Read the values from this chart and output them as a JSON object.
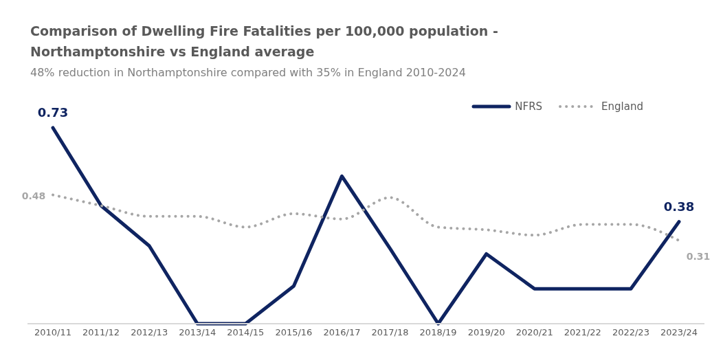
{
  "chart_data": {
    "type": "line",
    "title": "Comparison of Dwelling Fire Fatalities per 100,000 population - Northamptonshire vs England average",
    "subtitle": "48% reduction in Northamptonshire compared with 35% in England 2010-2024",
    "categories": [
      "2010/11",
      "2011/12",
      "2012/13",
      "2013/14",
      "2014/15",
      "2015/16",
      "2016/17",
      "2017/18",
      "2018/19",
      "2019/20",
      "2020/21",
      "2021/22",
      "2022/23",
      "2023/24"
    ],
    "series": [
      {
        "name": "NFRS",
        "color": "#0f2461",
        "line_style": "solid",
        "values": [
          0.73,
          0.44,
          0.29,
          0,
          0,
          0.14,
          0.55,
          0.28,
          0,
          0.26,
          0.13,
          0.13,
          0.13,
          0.38
        ],
        "value_labels": [
          "0.73",
          null,
          null,
          null,
          null,
          null,
          null,
          null,
          null,
          null,
          null,
          null,
          null,
          "0.38"
        ]
      },
      {
        "name": "England",
        "color": "#a6a6a6",
        "line_style": "dotted",
        "values": [
          0.48,
          0.44,
          0.4,
          0.4,
          0.36,
          0.41,
          0.39,
          0.47,
          0.36,
          0.35,
          0.33,
          0.37,
          0.37,
          0.31
        ],
        "value_labels": [
          "0.48",
          null,
          null,
          null,
          null,
          null,
          null,
          null,
          null,
          null,
          null,
          null,
          null,
          "0.31"
        ]
      }
    ],
    "legend": "top right",
    "tick_labels": "x",
    "grid": false,
    "marker": "none"
  }
}
